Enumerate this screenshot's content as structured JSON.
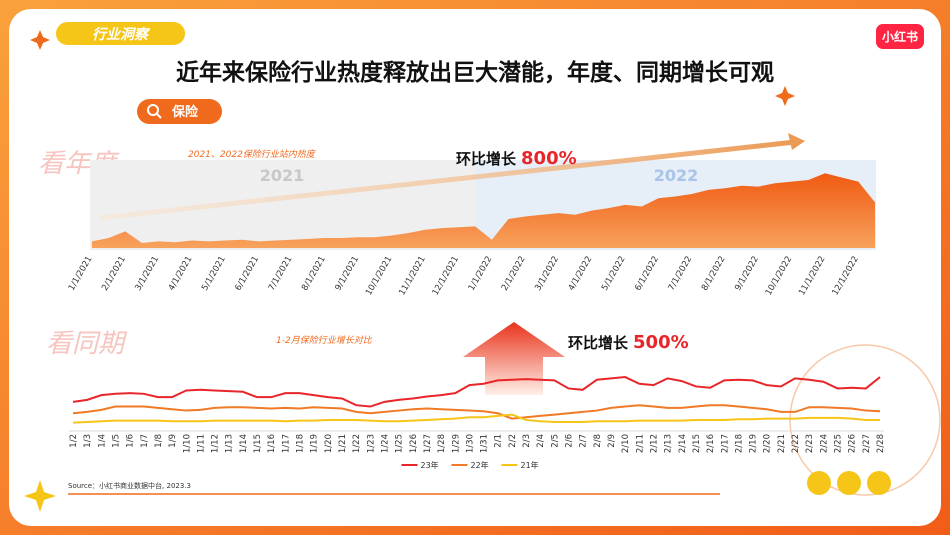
{
  "page": {
    "tag": "行业洞察",
    "title": "近年来保险行业热度释放出巨大潜能，年度、同期增长可观",
    "keyword": "保险",
    "logo": "小红书",
    "source": "Source：小红书商业数据中台, 2023.3"
  },
  "chart_data": [
    {
      "type": "area",
      "section_label": "看年度",
      "subtitle": "2021、2022保险行业站内热度",
      "period_labels": [
        "2021",
        "2022"
      ],
      "annotation": {
        "text": "环比增长",
        "highlight": "800%"
      },
      "color": "#f06a1e",
      "categories": [
        "1/1/2021",
        null,
        "2/1/2021",
        null,
        "3/1/2021",
        null,
        "4/1/2021",
        null,
        "5/1/2021",
        null,
        "6/1/2021",
        null,
        "7/1/2021",
        null,
        "8/1/2021",
        null,
        "9/1/2021",
        null,
        "10/1/2021",
        null,
        "11/1/2021",
        null,
        "12/1/2021",
        null,
        "1/1/2022",
        null,
        "2/1/2022",
        null,
        "3/1/2022",
        null,
        "4/1/2022",
        null,
        "5/1/2022",
        null,
        "6/1/2022",
        null,
        "7/1/2022",
        null,
        "8/1/2022",
        null,
        "9/1/2022",
        null,
        "10/1/2022",
        null,
        "11/1/2022",
        null,
        "12/1/2022",
        null
      ],
      "values": [
        8,
        12,
        20,
        6,
        8,
        7,
        9,
        8,
        9,
        10,
        8,
        9,
        10,
        11,
        12,
        12,
        13,
        13,
        15,
        18,
        22,
        24,
        25,
        26,
        10,
        35,
        38,
        40,
        42,
        40,
        45,
        48,
        52,
        50,
        60,
        62,
        65,
        70,
        72,
        75,
        74,
        78,
        80,
        82,
        90,
        85,
        80,
        55
      ],
      "ylim": [
        0,
        100
      ]
    },
    {
      "type": "line",
      "section_label": "看同期",
      "subtitle": "1-2月保险行业增长对比",
      "annotation": {
        "text": "环比增长",
        "highlight": "500%"
      },
      "categories": [
        "1/2",
        "1/3",
        "1/4",
        "1/5",
        "1/6",
        "1/7",
        "1/8",
        "1/9",
        "1/10",
        "1/11",
        "1/12",
        "1/13",
        "1/14",
        "1/15",
        "1/16",
        "1/17",
        "1/18",
        "1/19",
        "1/20",
        "1/21",
        "1/22",
        "1/23",
        "1/24",
        "1/25",
        "1/26",
        "1/27",
        "1/28",
        "1/29",
        "1/30",
        "1/31",
        "2/1",
        "2/2",
        "2/3",
        "2/4",
        "2/5",
        "2/6",
        "2/7",
        "2/8",
        "2/9",
        "2/10",
        "2/11",
        "2/12",
        "2/13",
        "2/14",
        "2/15",
        "2/16",
        "2/17",
        "2/18",
        "2/19",
        "2/20",
        "2/21",
        "2/22",
        "2/23",
        "2/24",
        "2/25",
        "2/26",
        "2/27",
        "2/28"
      ],
      "series": [
        {
          "name": "23年",
          "color": "#e8262a",
          "values": [
            45,
            48,
            55,
            57,
            58,
            57,
            52,
            52,
            62,
            63,
            62,
            61,
            60,
            52,
            52,
            58,
            58,
            55,
            52,
            50,
            40,
            38,
            45,
            48,
            50,
            53,
            55,
            58,
            70,
            72,
            77,
            78,
            79,
            78,
            77,
            65,
            63,
            78,
            80,
            82,
            72,
            70,
            80,
            76,
            68,
            66,
            77,
            78,
            77,
            70,
            68,
            80,
            78,
            75,
            65,
            66,
            65,
            82
          ]
        },
        {
          "name": "22年",
          "color": "#f07a26",
          "values": [
            28,
            30,
            33,
            38,
            38,
            38,
            36,
            34,
            32,
            33,
            36,
            37,
            37,
            36,
            35,
            36,
            35,
            37,
            36,
            35,
            30,
            28,
            30,
            32,
            34,
            35,
            34,
            33,
            32,
            31,
            28,
            20,
            22,
            24,
            26,
            28,
            30,
            32,
            36,
            38,
            40,
            38,
            36,
            36,
            38,
            40,
            40,
            38,
            36,
            34,
            30,
            30,
            37,
            37,
            36,
            35,
            32,
            31
          ]
        },
        {
          "name": "21年",
          "color": "#f5c518",
          "values": [
            14,
            15,
            16,
            17,
            17,
            17,
            17,
            16,
            16,
            16,
            17,
            17,
            17,
            17,
            17,
            16,
            17,
            17,
            18,
            18,
            18,
            17,
            16,
            16,
            17,
            18,
            19,
            20,
            22,
            22,
            24,
            26,
            18,
            16,
            15,
            15,
            15,
            16,
            16,
            16,
            17,
            17,
            17,
            17,
            18,
            18,
            18,
            19,
            19,
            20,
            20,
            20,
            21,
            21,
            21,
            20,
            18,
            18
          ]
        }
      ],
      "ylim": [
        0,
        100
      ],
      "legend": "bottom"
    }
  ]
}
